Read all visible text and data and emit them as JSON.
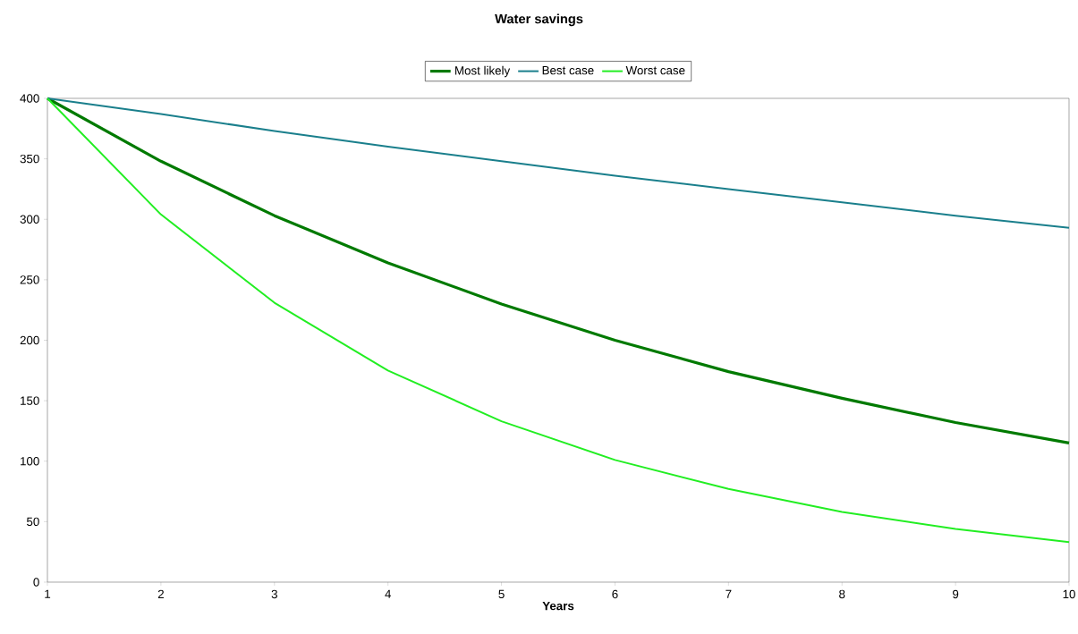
{
  "chart_data": {
    "type": "line",
    "title": "Water savings",
    "xlabel": "Years",
    "x": [
      1,
      2,
      3,
      4,
      5,
      6,
      7,
      8,
      9,
      10
    ],
    "series": [
      {
        "name": "Most likely",
        "color": "#007a00",
        "values": [
          400,
          348,
          303,
          264,
          230,
          200,
          174,
          152,
          132,
          115
        ]
      },
      {
        "name": "Best case",
        "color": "#1a7f8c",
        "values": [
          400,
          387,
          373,
          360,
          348,
          336,
          325,
          314,
          303,
          293
        ]
      },
      {
        "name": "Worst case",
        "color": "#22ee22",
        "values": [
          400,
          304,
          231,
          175,
          133,
          101,
          77,
          58,
          44,
          33
        ]
      }
    ],
    "xlim": [
      1,
      10
    ],
    "ylim": [
      0,
      400
    ],
    "xticks": [
      1,
      2,
      3,
      4,
      5,
      6,
      7,
      8,
      9,
      10
    ],
    "yticks": [
      0,
      50,
      100,
      150,
      200,
      250,
      300,
      350,
      400
    ],
    "grid": false,
    "legend": "top",
    "marker": "none",
    "line_style": "solid"
  }
}
